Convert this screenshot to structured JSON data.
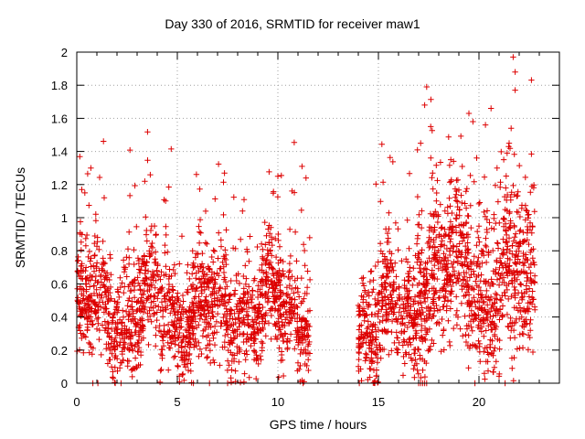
{
  "chart_data": {
    "type": "scatter",
    "title": "Day 330 of 2016, SRMTID for receiver maw1",
    "xlabel": "GPS time / hours",
    "ylabel": "SRMTID / TECUs",
    "xlim": [
      0,
      24
    ],
    "ylim": [
      0,
      2
    ],
    "xticks": [
      0,
      5,
      10,
      15,
      20
    ],
    "yticks": [
      0,
      0.2,
      0.4,
      0.6,
      0.8,
      1,
      1.2,
      1.4,
      1.6,
      1.8,
      2
    ],
    "grid": true,
    "marker": "+",
    "color": "#dd0000",
    "segments": [
      {
        "start": 0.0,
        "end": 11.6,
        "base": 0.45,
        "spread": 0.22,
        "count": 1700
      },
      {
        "start": 14.0,
        "end": 16.9,
        "base": 0.4,
        "spread": 0.24,
        "count": 420
      },
      {
        "start": 16.9,
        "end": 20.0,
        "base": 0.66,
        "spread": 0.3,
        "count": 520
      },
      {
        "start": 20.0,
        "end": 22.8,
        "base": 0.62,
        "spread": 0.34,
        "count": 460
      }
    ],
    "notable_points": [
      {
        "x": 0.7,
        "y": 1.3
      },
      {
        "x": 0.25,
        "y": 1.17
      },
      {
        "x": 0.4,
        "y": 1.15
      },
      {
        "x": 10.0,
        "y": 1.25
      },
      {
        "x": 11.2,
        "y": 1.31
      },
      {
        "x": 11.4,
        "y": 1.24
      },
      {
        "x": 17.4,
        "y": 1.79
      },
      {
        "x": 17.3,
        "y": 1.68
      },
      {
        "x": 17.6,
        "y": 1.55
      },
      {
        "x": 19.5,
        "y": 1.63
      },
      {
        "x": 19.7,
        "y": 1.58
      },
      {
        "x": 20.6,
        "y": 1.66
      },
      {
        "x": 21.7,
        "y": 1.97
      },
      {
        "x": 21.8,
        "y": 1.88
      },
      {
        "x": 21.8,
        "y": 1.77
      },
      {
        "x": 21.6,
        "y": 1.54
      },
      {
        "x": 21.5,
        "y": 1.45
      },
      {
        "x": 21.4,
        "y": 1.39
      },
      {
        "x": 17.1,
        "y": 1.45
      },
      {
        "x": 18.6,
        "y": 1.35
      },
      {
        "x": 20.9,
        "y": 1.3
      }
    ],
    "zero_points": [
      0.8,
      1.05,
      2.2,
      5.8,
      6.6,
      7.5,
      14.05,
      17.0,
      17.1,
      17.2,
      17.3,
      17.4,
      19.8,
      21.3
    ]
  }
}
